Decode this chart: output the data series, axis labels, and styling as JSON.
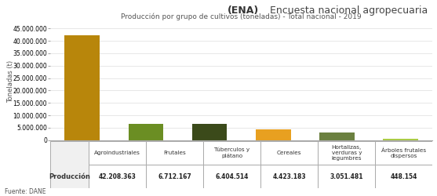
{
  "title_ena": "(ENA)",
  "title_rest": " Encuesta nacional agropecuaria",
  "subtitle": "Producción por grupo de cultivos (toneladas) - Total nacional - 2019",
  "ylabel": "Toneladas (t)",
  "source": "Fuente: DANE",
  "categories": [
    "Agroindustriales",
    "Frutales",
    "Túberculos y\nplátano",
    "Cereales",
    "Hortalizas,\nverduras y\nlegumbres",
    "Árboles frutales\ndispersos"
  ],
  "values": [
    42208363,
    6712167,
    6404514,
    4423183,
    3051481,
    448154
  ],
  "bar_colors": [
    "#B8860B",
    "#6B8E23",
    "#3B4A1A",
    "#E8A020",
    "#6B8040",
    "#AACC44"
  ],
  "row_label": "Producción",
  "row_values": [
    "42.208.363",
    "6.712.167",
    "6.404.514",
    "4.423.183",
    "3.051.481",
    "448.154"
  ],
  "ylim": [
    0,
    47000000
  ],
  "yticks": [
    0,
    5000000,
    10000000,
    15000000,
    20000000,
    25000000,
    30000000,
    35000000,
    40000000,
    45000000
  ],
  "background_color": "#FFFFFF",
  "title_bg": "#CCCCCC"
}
